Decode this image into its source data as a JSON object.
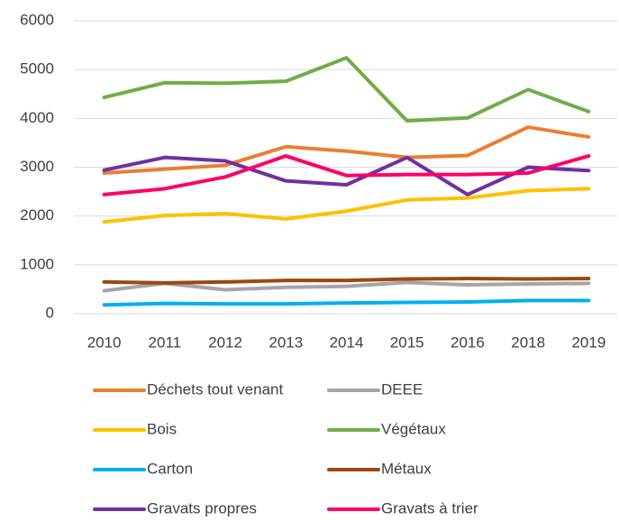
{
  "chart_data": {
    "type": "line",
    "categories": [
      "2010",
      "2011",
      "2012",
      "2013",
      "2014",
      "2015",
      "2016",
      "2018",
      "2019"
    ],
    "series": [
      {
        "name": "Déchets tout venant",
        "color": "#ed7d31",
        "values": [
          2880,
          2960,
          3040,
          3420,
          3330,
          3200,
          3240,
          3820,
          3620
        ]
      },
      {
        "name": "DEEE",
        "color": "#a5a5a5",
        "values": [
          470,
          620,
          490,
          540,
          560,
          640,
          590,
          610,
          620
        ]
      },
      {
        "name": "Bois",
        "color": "#ffc000",
        "values": [
          1880,
          2010,
          2050,
          1940,
          2100,
          2330,
          2370,
          2520,
          2560
        ]
      },
      {
        "name": "Végétaux",
        "color": "#70ad47",
        "values": [
          4430,
          4730,
          4720,
          4760,
          5240,
          3950,
          4010,
          4590,
          4140
        ]
      },
      {
        "name": "Carton",
        "color": "#00b0f0",
        "values": [
          180,
          210,
          200,
          200,
          220,
          230,
          240,
          270,
          270
        ]
      },
      {
        "name": "Métaux",
        "color": "#9e480e",
        "values": [
          650,
          630,
          650,
          680,
          680,
          710,
          720,
          710,
          720
        ]
      },
      {
        "name": "Gravats propres",
        "color": "#7030a0",
        "values": [
          2940,
          3200,
          3130,
          2720,
          2640,
          3200,
          2440,
          3000,
          2930
        ]
      },
      {
        "name": "Gravats à trier",
        "color": "#ff0066",
        "values": [
          2440,
          2560,
          2800,
          3230,
          2830,
          2850,
          2850,
          2880,
          3230
        ]
      }
    ],
    "ylim": [
      0,
      6000
    ],
    "yticks": [
      0,
      1000,
      2000,
      3000,
      4000,
      5000,
      6000
    ],
    "grid": true,
    "legend": "bottom"
  }
}
